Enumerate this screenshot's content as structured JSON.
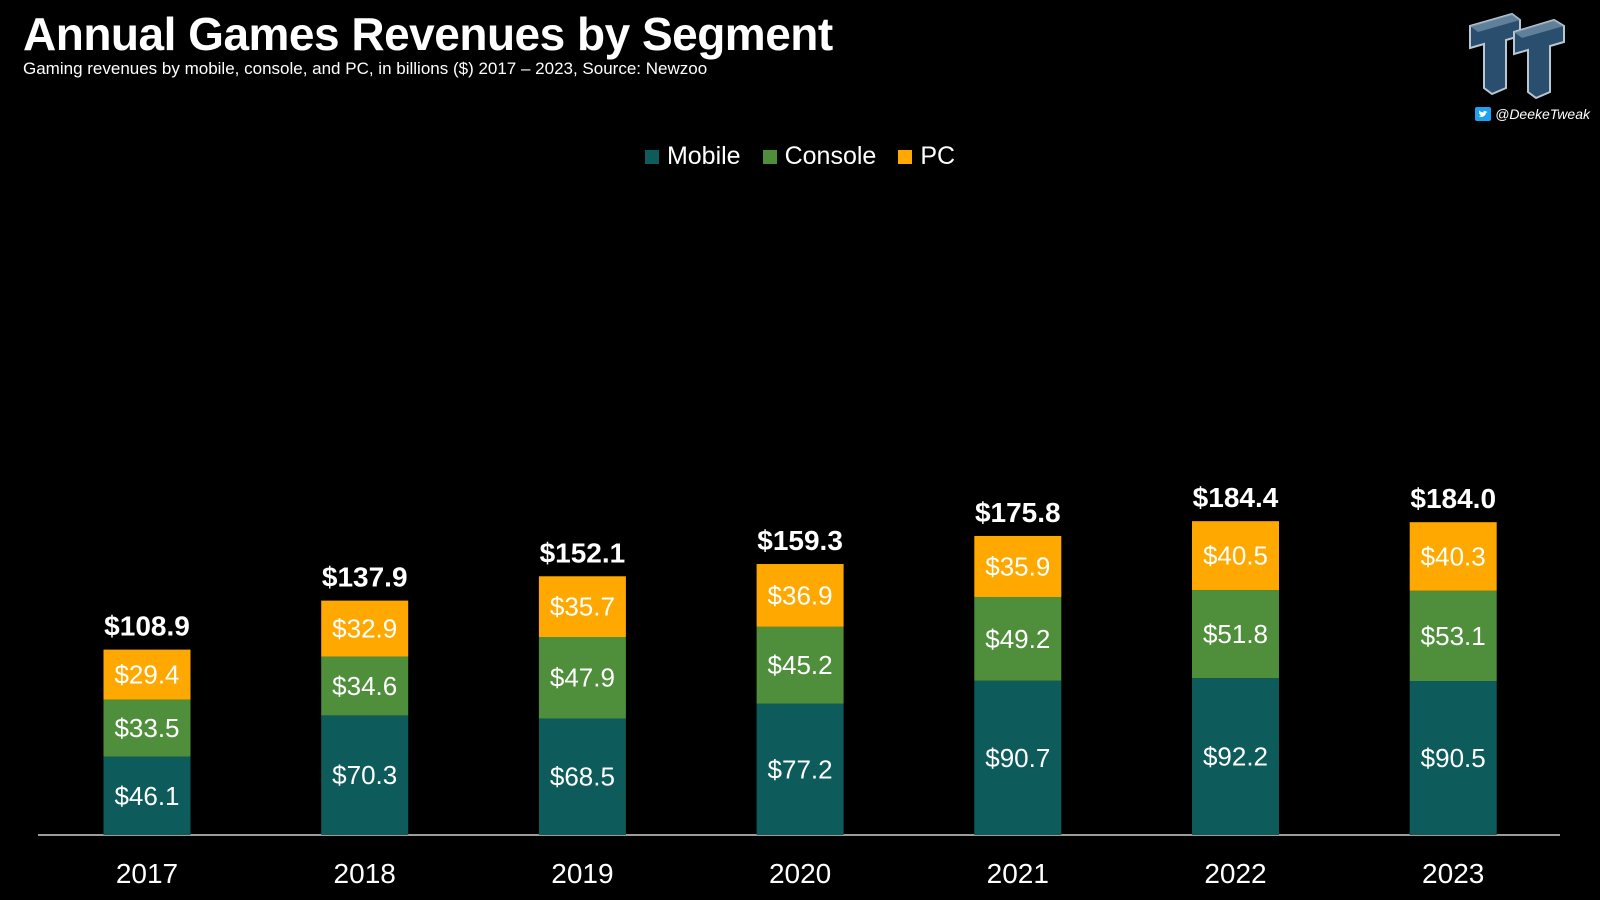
{
  "header": {
    "title": "Annual Games Revenues by Segment",
    "subtitle": "Gaming revenues by mobile, console, and PC, in billions ($) 2017 – 2023, Source: Newzoo"
  },
  "brand": {
    "logo_icon": "tt-logo-icon",
    "handle_icon": "twitter-bird-icon",
    "handle": "@DeekeTweak"
  },
  "colors": {
    "background": "#000000",
    "Mobile": "#0e5b5c",
    "Console": "#4f8f3c",
    "PC": "#ffa800",
    "text": "#ffffff"
  },
  "chart_data": {
    "type": "bar",
    "stacked": true,
    "title": "Annual Games Revenues by Segment",
    "subtitle": "Gaming revenues by mobile, console, and PC, in billions ($) 2017 – 2023, Source: Newzoo",
    "categories": [
      "2017",
      "2018",
      "2019",
      "2020",
      "2021",
      "2022",
      "2023"
    ],
    "series": [
      {
        "name": "Mobile",
        "values": [
          46.1,
          70.3,
          68.5,
          77.2,
          90.7,
          92.2,
          90.5
        ],
        "labels": [
          "$46.1",
          "$70.3",
          "$68.5",
          "$77.2",
          "$90.7",
          "$92.2",
          "$90.5"
        ]
      },
      {
        "name": "Console",
        "values": [
          33.5,
          34.6,
          47.9,
          45.2,
          49.2,
          51.8,
          53.1
        ],
        "labels": [
          "$33.5",
          "$34.6",
          "$47.9",
          "$45.2",
          "$49.2",
          "$51.8",
          "$53.1"
        ]
      },
      {
        "name": "PC",
        "values": [
          29.4,
          32.9,
          35.7,
          36.9,
          35.9,
          40.5,
          40.3
        ],
        "labels": [
          "$29.4",
          "$32.9",
          "$35.7",
          "$36.9",
          "$35.9",
          "$40.5",
          "$40.3"
        ]
      }
    ],
    "totals": [
      108.9,
      137.9,
      152.1,
      159.3,
      175.8,
      184.4,
      184.0
    ],
    "total_labels": [
      "$108.9",
      "$137.9",
      "$152.1",
      "$159.3",
      "$175.8",
      "$184.4",
      "$184.0"
    ],
    "legend": [
      "Mobile",
      "Console",
      "PC"
    ],
    "legend_position": "top-center",
    "grid": false,
    "y_axis_visible": false
  }
}
